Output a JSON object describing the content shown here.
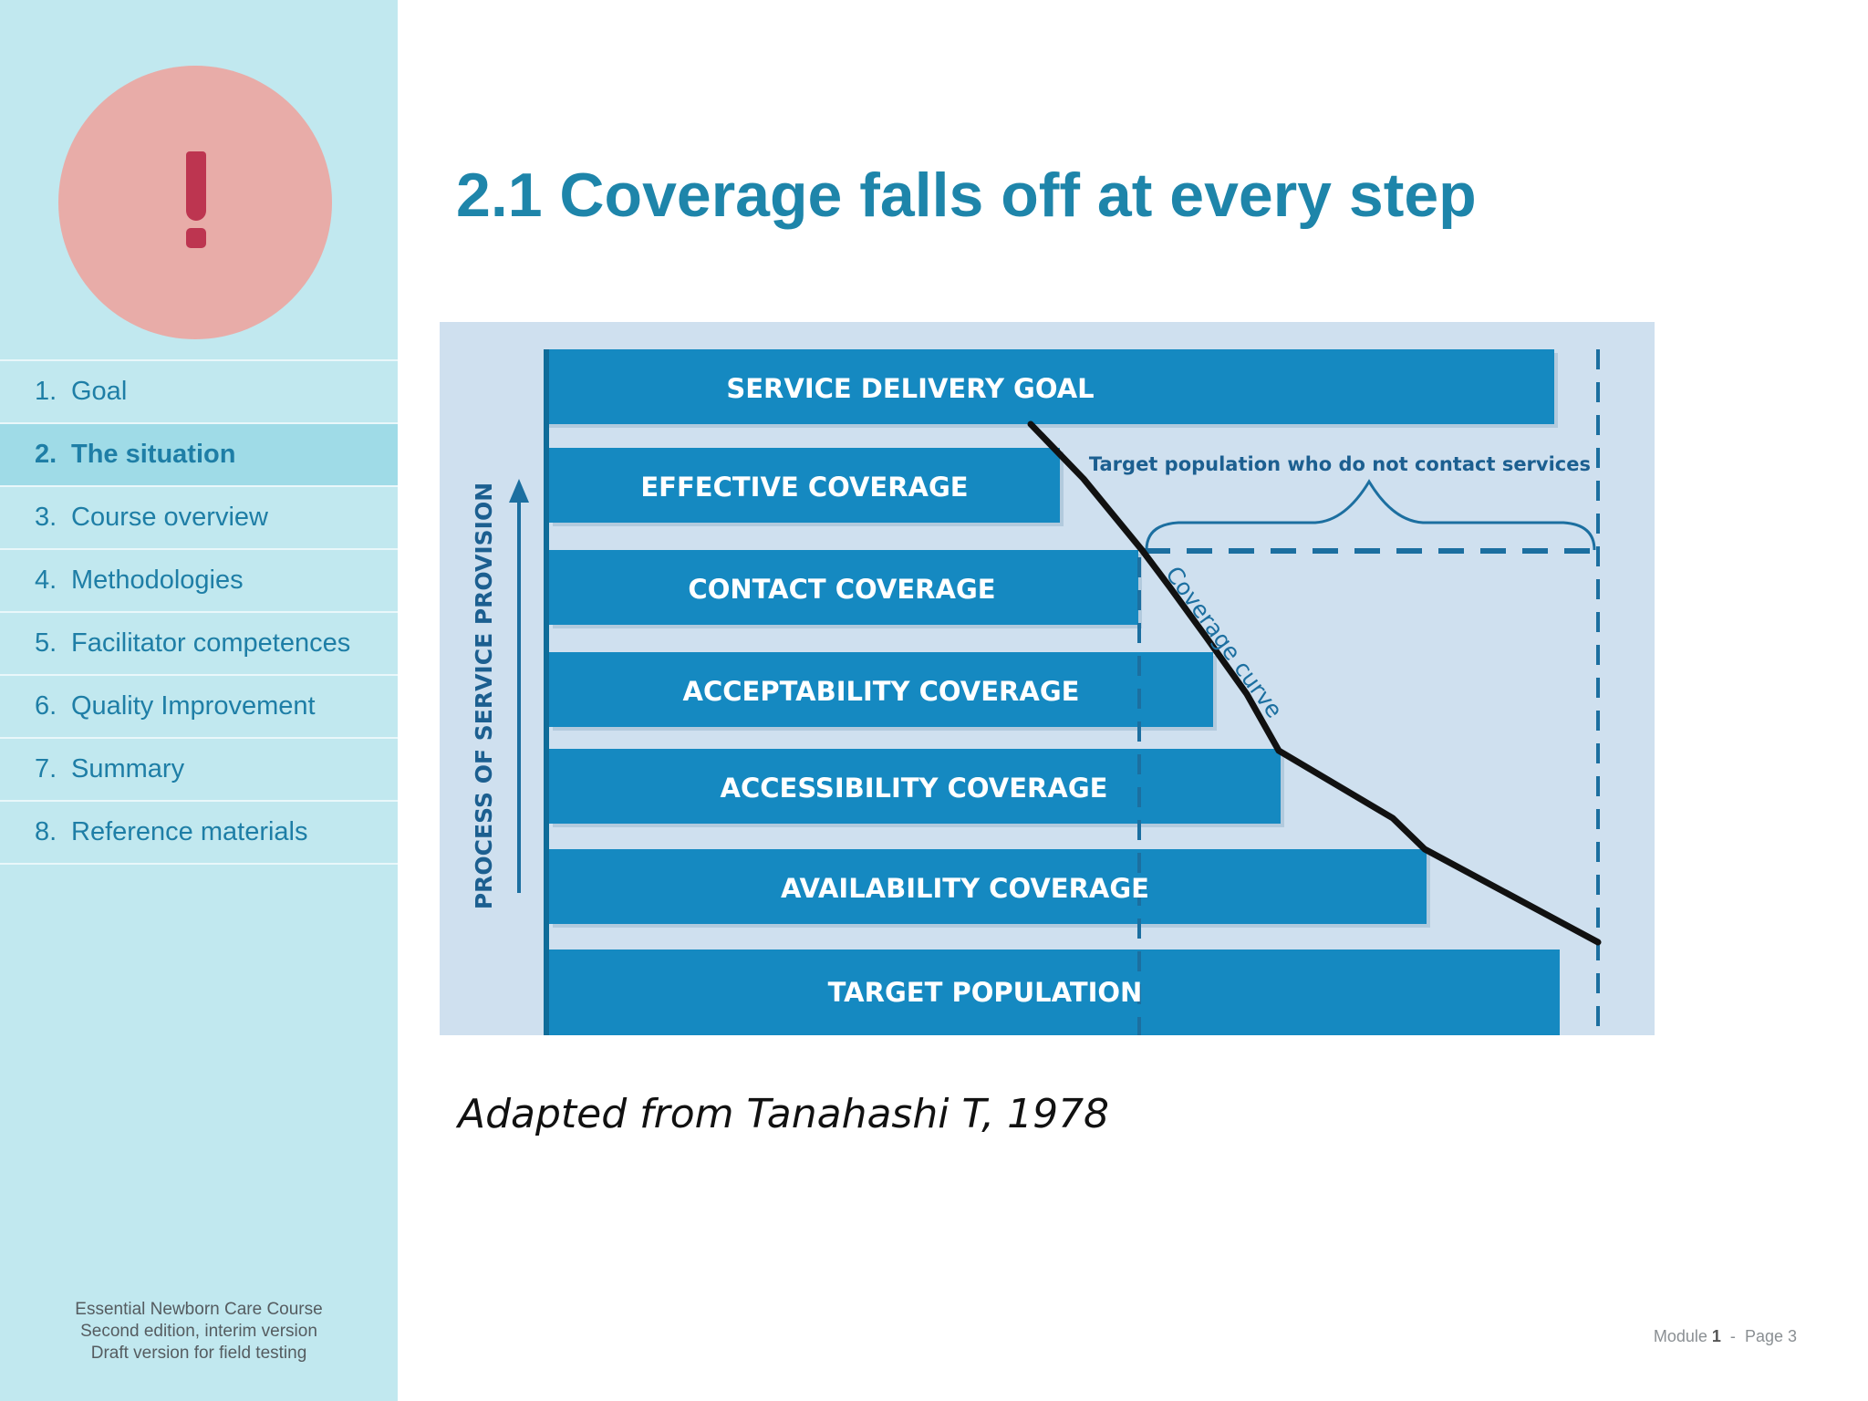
{
  "sidebar": {
    "alert_icon": "exclamation-icon",
    "alert_color": "#bd3550",
    "items": [
      {
        "num": "1.",
        "label": "Goal",
        "active": false
      },
      {
        "num": "2.",
        "label": "The situation",
        "active": true
      },
      {
        "num": "3.",
        "label": "Course overview",
        "active": false
      },
      {
        "num": "4.",
        "label": "Methodologies",
        "active": false
      },
      {
        "num": "5.",
        "label": "Facilitator competences",
        "active": false
      },
      {
        "num": "6.",
        "label": "Quality Improvement",
        "active": false
      },
      {
        "num": "7.",
        "label": "Summary",
        "active": false
      },
      {
        "num": "8.",
        "label": "Reference materials",
        "active": false
      }
    ],
    "footer": {
      "line1": "Essential Newborn Care Course",
      "line2": "Second edition, interim version",
      "line3": "Draft version for field testing"
    }
  },
  "main": {
    "title": "2.1 Coverage falls off at every step",
    "diagram": {
      "axis_label": "PROCESS OF SERVICE PROVISION",
      "bars": [
        {
          "label": "SERVICE DELIVERY GOAL"
        },
        {
          "label": "EFFECTIVE COVERAGE"
        },
        {
          "label": "CONTACT COVERAGE"
        },
        {
          "label": "ACCEPTABILITY COVERAGE"
        },
        {
          "label": "ACCESSIBILITY COVERAGE"
        },
        {
          "label": "AVAILABILITY COVERAGE"
        },
        {
          "label": "TARGET POPULATION"
        }
      ],
      "bracket_label": "Target population who do not contact services",
      "curve_label": "Coverage curve",
      "background_color": "#cfe0ef",
      "bar_color": "#1589c1"
    },
    "caption": "Adapted from Tanahashi T, 1978"
  },
  "page_number": {
    "module_label": "Module",
    "module_number": "1",
    "separator": "-",
    "page_label": "Page 3"
  }
}
